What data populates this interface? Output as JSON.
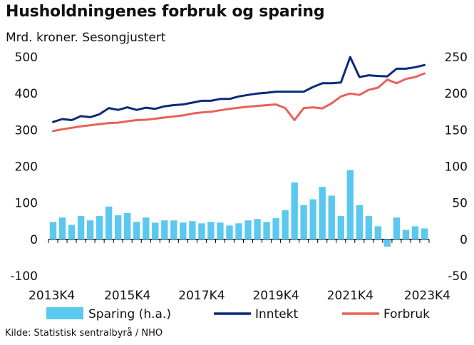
{
  "title": "Husholdningenes forbruk og sparing",
  "subtitle": "Mrd. kroner. Sesongjustert",
  "source": "Kilde: Statistisk sentralbyrå / NHO",
  "colors": {
    "sparing": "#5BC8F0",
    "inntekt": "#0B2A7A",
    "forbruk": "#E8625A",
    "axis": "#000000",
    "text": "#111111"
  },
  "chart_data": {
    "type": "bar+line",
    "x_tick_labels": [
      "2013K4",
      "2015K4",
      "2017K4",
      "2019K4",
      "2021K4",
      "2023K4"
    ],
    "left_axis": {
      "min": -100,
      "max": 500,
      "ticks": [
        -100,
        0,
        100,
        200,
        300,
        400,
        500
      ]
    },
    "right_axis": {
      "min": -50,
      "max": 250,
      "ticks": [
        -50,
        0,
        50,
        100,
        150,
        200,
        250
      ]
    },
    "grid": false,
    "legend_position": "bottom",
    "series": [
      {
        "name": "Sparing (h.a.)",
        "kind": "bar",
        "axis": "right",
        "values": [
          24,
          30,
          20,
          32,
          26,
          32,
          45,
          33,
          36,
          24,
          30,
          23,
          26,
          26,
          23,
          25,
          22,
          24,
          23,
          19,
          22,
          26,
          28,
          24,
          29,
          40,
          78,
          47,
          55,
          72,
          60,
          32,
          95,
          47,
          32,
          18,
          -10,
          30,
          13,
          18,
          15
        ]
      },
      {
        "name": "Inntekt",
        "kind": "line",
        "axis": "left",
        "values": [
          322,
          330,
          327,
          338,
          335,
          343,
          360,
          355,
          362,
          355,
          361,
          358,
          365,
          368,
          370,
          375,
          380,
          380,
          385,
          385,
          392,
          396,
          400,
          402,
          405,
          405,
          405,
          405,
          418,
          428,
          428,
          430,
          500,
          445,
          450,
          448,
          447,
          468,
          468,
          472,
          478
        ]
      },
      {
        "name": "Forbruk",
        "kind": "line",
        "axis": "left",
        "values": [
          297,
          302,
          306,
          310,
          313,
          316,
          319,
          320,
          324,
          327,
          328,
          331,
          334,
          337,
          340,
          345,
          348,
          350,
          354,
          358,
          361,
          364,
          366,
          368,
          370,
          360,
          327,
          360,
          362,
          359,
          373,
          392,
          400,
          396,
          410,
          416,
          438,
          428,
          440,
          445,
          455
        ]
      }
    ]
  }
}
